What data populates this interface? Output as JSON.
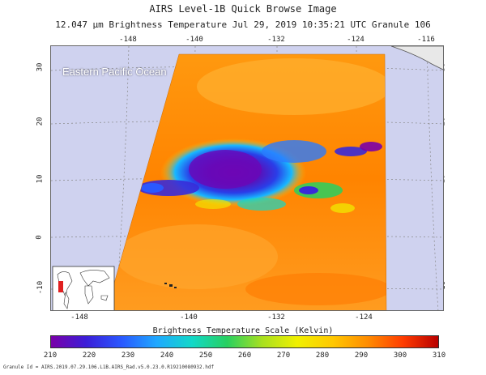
{
  "header": {
    "title": "AIRS Level-1B Quick Browse Image",
    "subtitle": "12.047 µm Brightness Temperature    Jul 29, 2019 10:35:21 UTC   Granule 106"
  },
  "map": {
    "region_label": "Eastern Pacific Ocean",
    "lon_labels_top": [
      "-148",
      "-140",
      "-132",
      "-124",
      "-116"
    ],
    "lon_labels_bottom": [
      "-148",
      "-140",
      "-132",
      "-124"
    ],
    "lat_labels": [
      "30",
      "20",
      "10",
      "0",
      "-10"
    ]
  },
  "colorbar": {
    "title": "Brightness Temperature Scale (Kelvin)",
    "ticks": [
      "210",
      "220",
      "230",
      "240",
      "250",
      "260",
      "270",
      "280",
      "290",
      "300",
      "310"
    ],
    "colors": [
      "#7a00a8",
      "#3b1ed8",
      "#2a58ff",
      "#1fa8ff",
      "#12d8c8",
      "#28d060",
      "#a8e020",
      "#f0f000",
      "#ffc800",
      "#ff8c00",
      "#ff3c00",
      "#b80000"
    ]
  },
  "footer": {
    "granule_id": "Granule Id = AIRS.2019.07.29.106.L1B.AIRS_Rad.v5.0.23.0.R19210080932.hdf"
  }
}
